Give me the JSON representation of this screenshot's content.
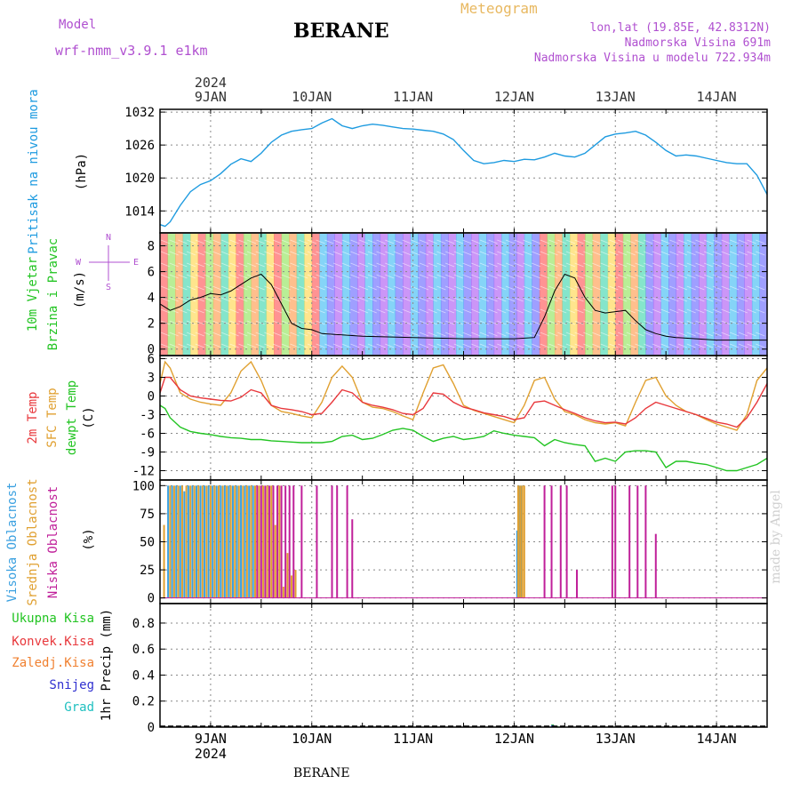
{
  "header": {
    "model_label": "Model",
    "model_name": "wrf-nmm_v3.9.1 e1km",
    "station": "BERANE",
    "product": "Meteogram",
    "coords": "lon,lat (19.85E, 42.8312N)",
    "elevation": "Nadmorska Visina 691m",
    "model_elevation": "Nadmorska Visina u modelu 722.934m",
    "footer_station": "BERANE",
    "credit": "made by Angel",
    "year": "2024"
  },
  "colors": {
    "pressure": "#1e9be0",
    "temp2m": "#e8383c",
    "sfc": "#e0a030",
    "dewpt": "#22c422",
    "high_cloud": "#3aa0e0",
    "mid_cloud": "#e0a030",
    "low_cloud": "#c0209a",
    "purple_text": "#b050d0",
    "orange_text": "#e8b860",
    "total_precip": "#22c422",
    "conv_precip": "#e8383c",
    "frozen_precip": "#f08030",
    "snow": "#3030d0",
    "graupel": "#20c0c0"
  },
  "time_axis": {
    "day_labels": [
      "9JAN",
      "10JAN",
      "11JAN",
      "12JAN",
      "13JAN",
      "14JAN"
    ],
    "day_positions": [
      1,
      2,
      3,
      4,
      5,
      6
    ],
    "range_days": [
      0.5,
      6.5
    ]
  },
  "legends": {
    "pressure": [
      "Pritisak na nivou mora",
      "(hPa)"
    ],
    "wind": [
      "10m Vjetar",
      "Brzina i Pravac",
      "(m/s)"
    ],
    "compass": [
      "N",
      "W",
      "E",
      "S"
    ],
    "temp": [
      "2m Temp",
      "SFC Temp",
      "dewpt Temp",
      "(C)"
    ],
    "cloud": [
      "Visoka Oblacnost",
      "Srednja Oblacnost",
      "Niska Oblacnost",
      "(%)"
    ],
    "precip": [
      "Ukupna Kisa",
      "Konvek.Kisa",
      "Zaledj.Kisa",
      "Snijeg",
      "Grad",
      "1hr Precip (mm)"
    ]
  },
  "chart_data": [
    {
      "type": "line",
      "panel": "pressure",
      "ylabel": "(hPa)",
      "ylim": [
        1010,
        1032.5
      ],
      "yticks": [
        1014,
        1020,
        1026,
        1032
      ],
      "grid": true,
      "series": [
        {
          "name": "Pritisak na nivou mora",
          "x": [
            0.5,
            0.55,
            0.6,
            0.7,
            0.8,
            0.9,
            1.0,
            1.1,
            1.2,
            1.3,
            1.4,
            1.5,
            1.6,
            1.7,
            1.8,
            1.9,
            2.0,
            2.1,
            2.2,
            2.3,
            2.4,
            2.5,
            2.6,
            2.7,
            2.8,
            2.9,
            3.0,
            3.1,
            3.2,
            3.3,
            3.4,
            3.5,
            3.6,
            3.7,
            3.8,
            3.9,
            4.0,
            4.1,
            4.2,
            4.3,
            4.4,
            4.5,
            4.6,
            4.7,
            4.8,
            4.9,
            5.0,
            5.1,
            5.2,
            5.3,
            5.4,
            5.5,
            5.6,
            5.7,
            5.8,
            5.9,
            6.0,
            6.1,
            6.2,
            6.3,
            6.4,
            6.5
          ],
          "values": [
            1011.5,
            1011.2,
            1012.0,
            1015.0,
            1017.5,
            1018.8,
            1019.5,
            1020.8,
            1022.5,
            1023.5,
            1023.0,
            1024.5,
            1026.5,
            1027.8,
            1028.5,
            1028.8,
            1029.0,
            1030.0,
            1030.8,
            1029.5,
            1029.0,
            1029.5,
            1029.8,
            1029.6,
            1029.3,
            1029.0,
            1028.9,
            1028.7,
            1028.5,
            1028.0,
            1027.0,
            1025.0,
            1023.2,
            1022.6,
            1022.8,
            1023.2,
            1023.0,
            1023.4,
            1023.3,
            1023.8,
            1024.5,
            1024.0,
            1023.8,
            1024.5,
            1026.0,
            1027.5,
            1028.0,
            1028.2,
            1028.5,
            1027.8,
            1026.5,
            1025.0,
            1024.0,
            1024.2,
            1024.0,
            1023.6,
            1023.2,
            1022.8,
            1022.6,
            1022.6,
            1020.5,
            1017.0
          ]
        }
      ]
    },
    {
      "type": "line",
      "panel": "wind",
      "ylabel": "(m/s)",
      "ylim": [
        -0.5,
        9
      ],
      "yticks": [
        0,
        2,
        4,
        6,
        8
      ],
      "grid": true,
      "note": "speed line with wind barbs",
      "series": [
        {
          "name": "10m Vjetar",
          "x": [
            0.5,
            0.6,
            0.7,
            0.8,
            0.9,
            1.0,
            1.1,
            1.2,
            1.3,
            1.4,
            1.5,
            1.6,
            1.7,
            1.8,
            1.9,
            2.0,
            2.1,
            2.5,
            3.0,
            3.5,
            4.0,
            4.2,
            4.3,
            4.4,
            4.5,
            4.6,
            4.7,
            4.8,
            4.9,
            5.0,
            5.1,
            5.2,
            5.3,
            5.4,
            5.5,
            5.6,
            6.0,
            6.5
          ],
          "values": [
            3.5,
            3.0,
            3.3,
            3.8,
            4.0,
            4.3,
            4.2,
            4.5,
            5.0,
            5.5,
            5.8,
            5.0,
            3.5,
            2.0,
            1.6,
            1.5,
            1.2,
            1.0,
            0.9,
            0.8,
            0.8,
            0.9,
            2.5,
            4.5,
            5.8,
            5.5,
            4.0,
            3.0,
            2.8,
            2.9,
            3.0,
            2.2,
            1.5,
            1.2,
            1.0,
            0.9,
            0.7,
            0.7
          ]
        }
      ]
    },
    {
      "type": "line",
      "panel": "temperature",
      "ylabel": "(C)",
      "ylim": [
        -13.5,
        6.5
      ],
      "yticks": [
        -12,
        -9,
        -6,
        -3,
        0,
        3,
        6
      ],
      "grid": true,
      "series": [
        {
          "name": "2m Temp",
          "x": [
            0.5,
            0.55,
            0.6,
            0.7,
            0.8,
            0.9,
            1.0,
            1.1,
            1.2,
            1.3,
            1.4,
            1.5,
            1.6,
            1.7,
            1.8,
            1.9,
            2.0,
            2.1,
            2.2,
            2.3,
            2.4,
            2.5,
            2.6,
            2.7,
            2.8,
            2.9,
            3.0,
            3.1,
            3.2,
            3.3,
            3.4,
            3.5,
            3.6,
            3.7,
            3.8,
            3.9,
            4.0,
            4.1,
            4.2,
            4.3,
            4.4,
            4.5,
            4.6,
            4.7,
            4.8,
            4.9,
            5.0,
            5.1,
            5.2,
            5.3,
            5.4,
            5.5,
            5.6,
            5.7,
            5.8,
            5.9,
            6.0,
            6.1,
            6.2,
            6.3,
            6.4,
            6.5
          ],
          "values": [
            0.5,
            3.0,
            3.0,
            1.0,
            0.0,
            -0.3,
            -0.5,
            -0.7,
            -0.8,
            -0.2,
            1.0,
            0.5,
            -1.5,
            -2.0,
            -2.2,
            -2.5,
            -3.0,
            -2.8,
            -1.0,
            1.0,
            0.5,
            -1.0,
            -1.5,
            -1.8,
            -2.2,
            -2.8,
            -3.0,
            -2.0,
            0.5,
            0.3,
            -1.0,
            -1.8,
            -2.2,
            -2.7,
            -3.0,
            -3.3,
            -3.8,
            -3.5,
            -1.0,
            -0.8,
            -1.5,
            -2.2,
            -2.8,
            -3.5,
            -4.0,
            -4.3,
            -4.2,
            -4.5,
            -3.5,
            -2.0,
            -1.0,
            -1.5,
            -2.0,
            -2.5,
            -3.0,
            -3.6,
            -4.2,
            -4.5,
            -5.0,
            -3.5,
            -1.0,
            2.0
          ]
        },
        {
          "name": "SFC Temp",
          "x": [
            0.5,
            0.55,
            0.6,
            0.7,
            0.8,
            0.9,
            1.0,
            1.1,
            1.2,
            1.3,
            1.4,
            1.5,
            1.6,
            1.7,
            1.8,
            1.9,
            2.0,
            2.1,
            2.2,
            2.3,
            2.4,
            2.5,
            2.6,
            2.7,
            2.8,
            2.9,
            3.0,
            3.1,
            3.2,
            3.3,
            3.4,
            3.5,
            3.6,
            3.7,
            3.8,
            3.9,
            4.0,
            4.1,
            4.2,
            4.3,
            4.4,
            4.5,
            4.6,
            4.7,
            4.8,
            4.9,
            5.0,
            5.1,
            5.2,
            5.3,
            5.4,
            5.5,
            5.6,
            5.7,
            5.8,
            5.9,
            6.0,
            6.1,
            6.2,
            6.3,
            6.4,
            6.5
          ],
          "values": [
            2.0,
            5.5,
            4.5,
            0.5,
            -0.5,
            -1.0,
            -1.3,
            -1.5,
            0.5,
            4.0,
            5.5,
            2.5,
            -1.5,
            -2.5,
            -2.8,
            -3.2,
            -3.5,
            -1.0,
            3.0,
            4.8,
            3.0,
            -1.0,
            -1.8,
            -2.0,
            -2.5,
            -3.2,
            -3.8,
            0.5,
            4.5,
            5.0,
            2.0,
            -1.5,
            -2.3,
            -2.8,
            -3.3,
            -3.8,
            -4.3,
            -1.5,
            2.5,
            3.0,
            -0.5,
            -2.5,
            -3.0,
            -3.8,
            -4.3,
            -4.5,
            -4.3,
            -4.8,
            -1.0,
            2.5,
            3.0,
            0.0,
            -1.5,
            -2.5,
            -3.0,
            -3.8,
            -4.5,
            -5.0,
            -5.5,
            -3.0,
            2.5,
            4.5
          ]
        },
        {
          "name": "dewpt Temp",
          "x": [
            0.5,
            0.55,
            0.6,
            0.7,
            0.8,
            0.9,
            1.0,
            1.1,
            1.2,
            1.3,
            1.4,
            1.5,
            1.6,
            1.7,
            1.8,
            1.9,
            2.0,
            2.1,
            2.2,
            2.3,
            2.4,
            2.5,
            2.6,
            2.7,
            2.8,
            2.9,
            3.0,
            3.1,
            3.2,
            3.3,
            3.4,
            3.5,
            3.6,
            3.7,
            3.8,
            3.9,
            4.0,
            4.1,
            4.2,
            4.3,
            4.4,
            4.5,
            4.6,
            4.7,
            4.8,
            4.9,
            5.0,
            5.1,
            5.2,
            5.3,
            5.4,
            5.5,
            5.6,
            5.7,
            5.8,
            5.9,
            6.0,
            6.1,
            6.2,
            6.3,
            6.4,
            6.5
          ],
          "values": [
            -1.5,
            -2.0,
            -3.5,
            -5.0,
            -5.7,
            -6.0,
            -6.2,
            -6.5,
            -6.7,
            -6.8,
            -7.0,
            -7.0,
            -7.2,
            -7.3,
            -7.4,
            -7.5,
            -7.5,
            -7.5,
            -7.3,
            -6.5,
            -6.3,
            -7.0,
            -6.8,
            -6.2,
            -5.5,
            -5.2,
            -5.5,
            -6.5,
            -7.3,
            -6.8,
            -6.5,
            -7.0,
            -6.8,
            -6.5,
            -5.6,
            -6.0,
            -6.3,
            -6.5,
            -6.7,
            -8.0,
            -7.0,
            -7.5,
            -7.8,
            -8.0,
            -10.5,
            -10.0,
            -10.5,
            -9.0,
            -8.8,
            -8.8,
            -9.0,
            -11.5,
            -10.5,
            -10.5,
            -10.8,
            -11.0,
            -11.5,
            -12.0,
            -12.0,
            -11.5,
            -11.0,
            -10.0
          ]
        }
      ]
    },
    {
      "type": "bar",
      "panel": "cloud",
      "ylabel": "(%)",
      "ylim": [
        -5,
        105
      ],
      "yticks": [
        0,
        25,
        50,
        75,
        100
      ],
      "grid": true,
      "series": [
        {
          "name": "Visoka Oblacnost",
          "x": [
            0.58,
            0.62,
            0.66,
            0.7,
            0.74,
            0.78,
            0.82,
            0.86,
            0.9,
            0.94,
            0.98,
            1.02,
            1.06,
            1.1,
            1.14,
            1.18,
            1.22,
            1.26,
            1.3,
            1.34,
            1.38,
            1.42,
            4.03,
            4.05,
            4.07
          ],
          "values": [
            100,
            100,
            100,
            100,
            95,
            100,
            100,
            100,
            100,
            100,
            100,
            100,
            100,
            100,
            100,
            100,
            100,
            100,
            100,
            100,
            100,
            100,
            60,
            100,
            100
          ]
        },
        {
          "name": "Srednja Oblacnost",
          "x": [
            0.54,
            0.6,
            0.64,
            0.68,
            0.72,
            0.76,
            0.8,
            0.84,
            0.88,
            0.92,
            0.96,
            1.0,
            1.04,
            1.08,
            1.12,
            1.16,
            1.2,
            1.24,
            1.28,
            1.32,
            1.36,
            1.4,
            1.44,
            1.48,
            1.52,
            1.56,
            1.6,
            1.64,
            1.68,
            1.72,
            1.76,
            1.8,
            1.84,
            4.04,
            4.06,
            4.08,
            4.1
          ],
          "values": [
            65,
            100,
            100,
            100,
            100,
            100,
            100,
            100,
            100,
            100,
            100,
            100,
            100,
            100,
            100,
            100,
            100,
            100,
            100,
            100,
            100,
            100,
            100,
            100,
            100,
            100,
            100,
            65,
            100,
            10,
            40,
            20,
            25,
            100,
            100,
            100,
            100
          ]
        },
        {
          "name": "Niska Oblacnost",
          "x": [
            1.46,
            1.5,
            1.54,
            1.58,
            1.62,
            1.66,
            1.7,
            1.74,
            1.78,
            1.82,
            1.9,
            2.05,
            2.2,
            2.25,
            2.35,
            2.4,
            4.3,
            4.37,
            4.46,
            4.52,
            4.62,
            4.97,
            5.0,
            5.14,
            5.22,
            5.3,
            5.4
          ],
          "values": [
            100,
            100,
            100,
            100,
            100,
            100,
            100,
            100,
            100,
            100,
            100,
            100,
            100,
            100,
            100,
            70,
            100,
            100,
            100,
            100,
            25,
            100,
            100,
            100,
            100,
            100,
            57
          ]
        }
      ]
    },
    {
      "type": "bar",
      "panel": "precipitation",
      "ylabel": "1hr Precip (mm)",
      "ylim": [
        0,
        0.95
      ],
      "yticks": [
        0,
        0.2,
        0.4,
        0.6,
        0.8
      ],
      "grid": true,
      "series": [
        {
          "name": "Ukupna Kisa",
          "x": [
            4.38,
            4.42
          ],
          "values": [
            0.02,
            0.01
          ]
        },
        {
          "name": "Snijeg",
          "x": [
            4.38,
            4.4
          ],
          "values": [
            0.015,
            0.01
          ]
        },
        {
          "name": "Grad",
          "x": [
            4.39
          ],
          "values": [
            0.01
          ]
        }
      ]
    }
  ]
}
